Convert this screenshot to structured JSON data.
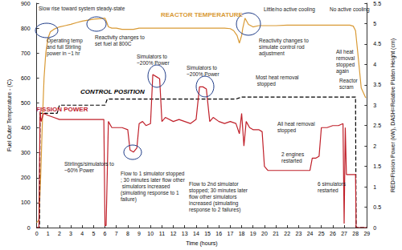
{
  "chart_data": {
    "type": "line",
    "xlabel": "Time (hours)",
    "ylabel": "Fuel Outer Temperature - (C)",
    "y2label": "RED=Fission Power (kW), DASH=Relative Platen Height (cm)",
    "xlim": [
      0,
      29
    ],
    "xticks": [
      0,
      1,
      2,
      3,
      4,
      5,
      6,
      7,
      8,
      9,
      10,
      11,
      12,
      13,
      14,
      15,
      16,
      17,
      18,
      19,
      20,
      21,
      22,
      23,
      24,
      25,
      26,
      27,
      28,
      29
    ],
    "ylim": [
      0,
      900
    ],
    "yticks": [
      0,
      100,
      200,
      300,
      400,
      500,
      600,
      700,
      800,
      900
    ],
    "y2lim": [
      0,
      5.5
    ],
    "y2ticks": [
      0,
      0.5,
      1,
      1.5,
      2,
      2.5,
      3,
      3.5,
      4,
      4.5,
      5,
      5.5
    ],
    "grid": false,
    "series": [
      {
        "name": "REACTOR TEMPERATURE",
        "color": "#d99a35",
        "line_style": "solid",
        "x": [
          0,
          0.2,
          0.35,
          0.5,
          0.65,
          0.8,
          1.0,
          1.2,
          1.5,
          2,
          2.5,
          3,
          3.5,
          4,
          4.5,
          5,
          5.5,
          6,
          6.1,
          6.3,
          6.6,
          7,
          7.5,
          8,
          8.5,
          9,
          9.5,
          10,
          10.5,
          11,
          11.5,
          12,
          12.5,
          13,
          13.5,
          14,
          14.5,
          15,
          15.5,
          16,
          16.5,
          17,
          17.3,
          17.6,
          17.8,
          18,
          18.1,
          18.3,
          18.6,
          19,
          19.5,
          20,
          21,
          22,
          23,
          24,
          25,
          26,
          27,
          27.5,
          27.8,
          28,
          28.2,
          28.5,
          28.9
        ],
        "values": [
          20,
          30,
          200,
          420,
          600,
          700,
          760,
          785,
          795,
          805,
          810,
          815,
          822,
          828,
          832,
          836,
          838,
          840,
          830,
          805,
          800,
          800,
          795,
          795,
          795,
          800,
          800,
          800,
          800,
          800,
          800,
          800,
          800,
          800,
          800,
          800,
          800,
          800,
          800,
          800,
          800,
          798,
          790,
          770,
          740,
          770,
          800,
          840,
          815,
          805,
          810,
          810,
          810,
          812,
          812,
          812,
          812,
          812,
          812,
          812,
          808,
          790,
          700,
          560,
          520
        ]
      },
      {
        "name": "CONTROL POSITION",
        "color": "#000000",
        "line_style": "dashed",
        "axis": "y2",
        "x": [
          0,
          0.25,
          0.3,
          1.8,
          2.0,
          6,
          6.2,
          17.5,
          18,
          28,
          28.05,
          29
        ],
        "values": [
          0,
          0,
          2.8,
          2.8,
          3.0,
          3.0,
          3.15,
          3.15,
          3.2,
          3.2,
          0,
          0
        ]
      },
      {
        "name": "FISSION POWER",
        "color": "#c0202a",
        "line_style": "solid",
        "axis": "y2",
        "x": [
          0,
          0.2,
          0.3,
          0.4,
          0.6,
          1,
          1.5,
          2,
          3,
          4,
          5,
          5.9,
          6.0,
          6.1,
          6.3,
          6.6,
          7,
          7.5,
          8,
          8.2,
          8.5,
          8.8,
          9,
          9.3,
          9.6,
          10,
          10.2,
          10.5,
          10.8,
          11,
          11.3,
          12,
          12.5,
          13,
          13.5,
          14,
          14.3,
          14.6,
          14.9,
          15.2,
          15.5,
          16,
          16.5,
          17,
          17.5,
          17.8,
          18,
          18.2,
          18.4,
          18.7,
          19,
          19.5,
          19.8,
          20,
          20.3,
          21,
          22,
          23,
          24,
          24.2,
          24.5,
          24.8,
          25,
          25.5,
          26,
          26.5,
          26.9,
          27,
          27.1,
          27.2,
          27.5,
          28,
          28.05,
          28.5,
          29
        ],
        "values": [
          0,
          0,
          2.85,
          2.6,
          2.8,
          2.75,
          2.7,
          2.65,
          2.65,
          2.65,
          2.65,
          2.65,
          0.05,
          0.05,
          2.6,
          2.45,
          2.45,
          2.45,
          2.4,
          1.9,
          1.85,
          1.95,
          2.55,
          2.6,
          2.5,
          2.55,
          3.75,
          3.7,
          3.65,
          2.6,
          2.7,
          2.6,
          2.65,
          2.6,
          2.55,
          2.65,
          3.45,
          3.45,
          3.4,
          2.6,
          2.7,
          2.6,
          2.55,
          2.6,
          2.55,
          2.3,
          2.8,
          2.0,
          2.6,
          2.45,
          2.4,
          2.4,
          2.35,
          1.5,
          1.4,
          1.4,
          1.4,
          1.4,
          1.4,
          1.7,
          1.7,
          1.75,
          2.45,
          2.45,
          2.5,
          2.5,
          2.55,
          0.1,
          2.45,
          1.3,
          1.3,
          1.3,
          0,
          0,
          0
        ]
      }
    ],
    "annotations": [
      "Slow rise toward system steady-state",
      "Operating temp and full Stirling power in ~1 hr",
      "Reactivity changes to set fuel at 800C",
      "Reactivity changes to simulate control rod adjustment",
      "Little/no active cooling",
      "No active cooling",
      "Simulators to ~200% Power",
      "Simulators to ~200% Power",
      "Stirlings/simulators to ~60% Power",
      "Flow to 1 simulator stopped; 30 minutes later flow other simulators increased (simulating response to 1 failure)",
      "Flow to 2nd simulator stopped; 30 minutes later flow other simulators increased (simulating response to 2 failures)",
      "Most heat removal stopped",
      "All heat removal stopped",
      "2 engines restarted",
      "6 simulators restarted",
      "All heat removal stopped again",
      "Reactor scram"
    ]
  }
}
